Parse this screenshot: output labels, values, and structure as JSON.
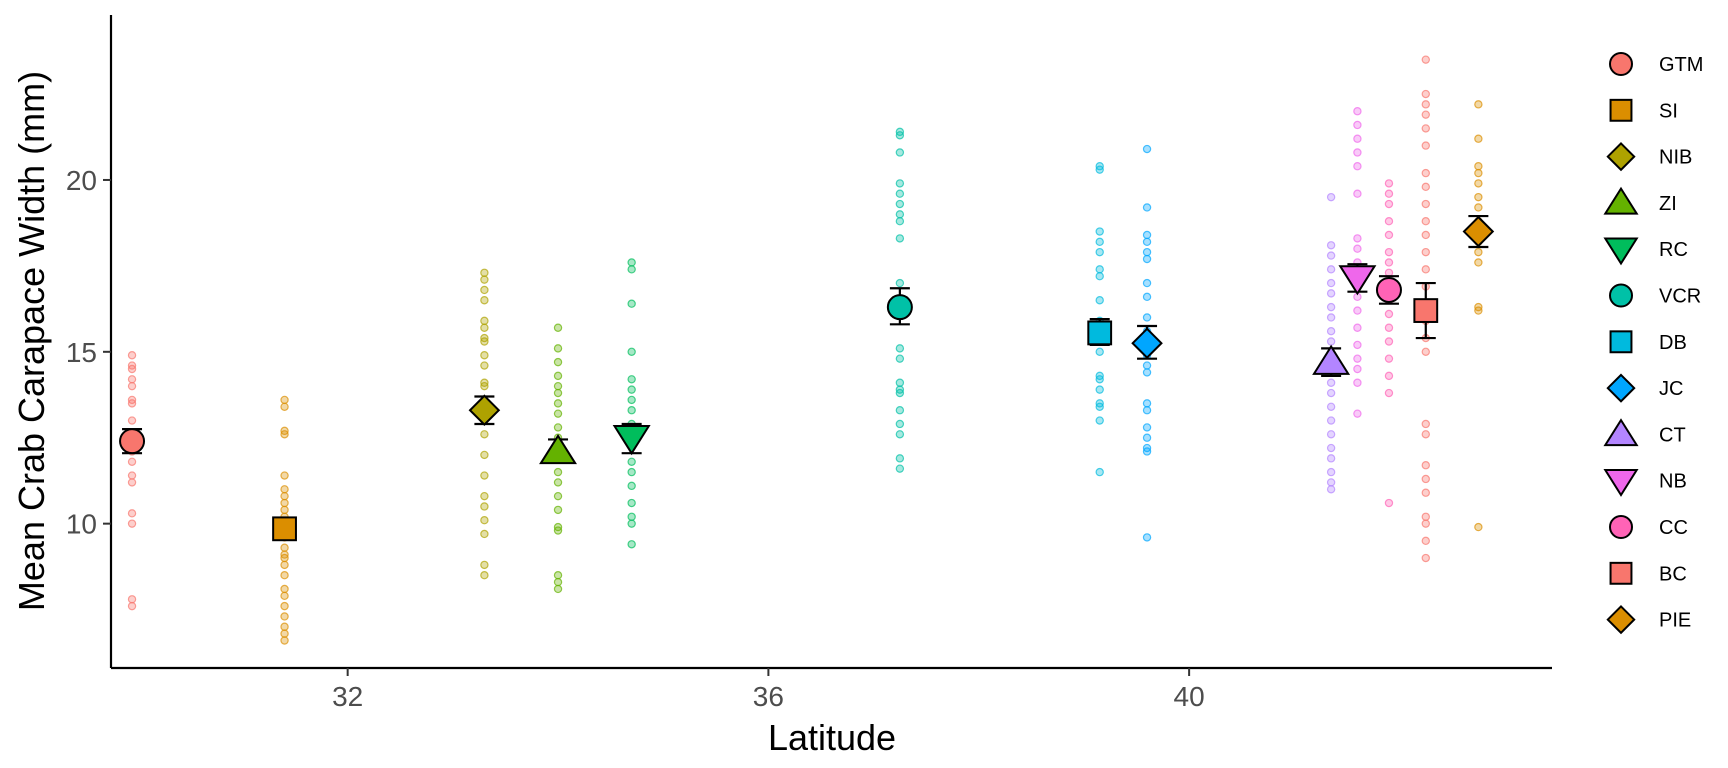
{
  "chart_data": {
    "type": "scatter",
    "title": "",
    "xlabel": "Latitude",
    "ylabel": "Mean Crab Carapace Width (mm)",
    "xlim": [
      29.75,
      43.45
    ],
    "ylim": [
      5.8,
      24.8
    ],
    "xticks": [
      32,
      36,
      40
    ],
    "yticks": [
      10,
      15,
      20
    ],
    "grid": false,
    "legend_position": "right",
    "series": [
      {
        "name": "GTM",
        "color": "#F8766D",
        "shape": "circle",
        "latitude": 29.95,
        "mean": 12.4,
        "se": [
          12.05,
          12.75
        ],
        "points": [
          14.9,
          14.6,
          14.5,
          14.2,
          14.0,
          13.6,
          13.5,
          13.0,
          12.6,
          12.4,
          12.1,
          11.8,
          11.4,
          11.2,
          10.3,
          10.0,
          7.8,
          7.6
        ]
      },
      {
        "name": "SI",
        "color": "#DB8E00",
        "shape": "square",
        "latitude": 31.4,
        "mean": 9.85,
        "se": [
          9.6,
          10.1
        ],
        "points": [
          13.6,
          13.4,
          12.7,
          12.6,
          11.4,
          11.0,
          10.8,
          10.6,
          10.4,
          10.2,
          10.0,
          9.8,
          9.6,
          9.3,
          9.1,
          9.0,
          8.8,
          8.5,
          8.1,
          7.9,
          7.6,
          7.3,
          7.0,
          6.8,
          6.6
        ]
      },
      {
        "name": "NIB",
        "color": "#AEA200",
        "shape": "diamond",
        "latitude": 33.3,
        "mean": 13.3,
        "se": [
          12.9,
          13.7
        ],
        "points": [
          17.3,
          17.1,
          16.8,
          16.5,
          15.9,
          15.7,
          15.4,
          15.3,
          14.9,
          14.6,
          14.1,
          14.0,
          13.5,
          13.0,
          12.6,
          12.0,
          11.4,
          10.8,
          10.5,
          10.1,
          9.7,
          8.8,
          8.5
        ]
      },
      {
        "name": "ZI",
        "color": "#64B200",
        "shape": "triangle-up",
        "latitude": 34.0,
        "mean": 12.1,
        "se": [
          11.8,
          12.45
        ],
        "points": [
          15.7,
          15.1,
          14.7,
          14.3,
          14.0,
          13.8,
          13.5,
          13.2,
          12.8,
          12.5,
          12.1,
          11.9,
          11.5,
          11.2,
          10.8,
          10.4,
          9.9,
          9.8,
          8.5,
          8.3,
          8.1
        ]
      },
      {
        "name": "RC",
        "color": "#00BD5C",
        "shape": "triangle-down",
        "latitude": 34.7,
        "mean": 12.5,
        "se": [
          12.05,
          12.9
        ],
        "points": [
          17.6,
          17.4,
          16.4,
          15.0,
          14.2,
          13.9,
          13.6,
          13.3,
          12.9,
          12.6,
          12.3,
          11.8,
          11.5,
          11.1,
          10.6,
          10.2,
          10.0,
          9.4
        ]
      },
      {
        "name": "VCR",
        "color": "#00C1A7",
        "shape": "circle",
        "latitude": 37.25,
        "mean": 16.3,
        "se": [
          15.8,
          16.85
        ],
        "points": [
          21.4,
          21.3,
          20.8,
          19.9,
          19.6,
          19.3,
          19.0,
          18.8,
          18.3,
          17.0,
          15.1,
          14.8,
          14.1,
          13.9,
          13.8,
          13.3,
          12.9,
          12.6,
          11.9,
          11.6
        ]
      },
      {
        "name": "DB",
        "color": "#00BADE",
        "shape": "square",
        "latitude": 39.15,
        "mean": 15.55,
        "se": [
          15.2,
          15.95
        ],
        "points": [
          20.4,
          20.3,
          18.5,
          18.2,
          17.9,
          17.4,
          17.2,
          16.5,
          15.9,
          15.4,
          15.0,
          14.3,
          14.2,
          13.9,
          13.5,
          13.4,
          13.0,
          11.5
        ]
      },
      {
        "name": "JC",
        "color": "#00A6FF",
        "shape": "diamond",
        "latitude": 39.6,
        "mean": 15.25,
        "se": [
          14.8,
          15.75
        ],
        "points": [
          20.9,
          19.2,
          18.4,
          18.2,
          17.9,
          17.7,
          17.0,
          16.6,
          16.0,
          15.6,
          14.9,
          14.6,
          14.4,
          13.5,
          13.3,
          12.8,
          12.5,
          12.2,
          12.1,
          9.6
        ]
      },
      {
        "name": "CT",
        "color": "#B385FF",
        "shape": "triangle-up",
        "latitude": 41.35,
        "mean": 14.7,
        "se": [
          14.3,
          15.1
        ],
        "points": [
          19.5,
          18.1,
          17.8,
          17.4,
          17.0,
          16.7,
          16.3,
          16.0,
          15.6,
          15.3,
          14.9,
          14.5,
          14.1,
          13.8,
          13.4,
          13.0,
          12.6,
          12.2,
          11.9,
          11.5,
          11.2,
          11.0
        ]
      },
      {
        "name": "NB",
        "color": "#EF67EB",
        "shape": "triangle-down",
        "latitude": 41.6,
        "mean": 17.15,
        "se": [
          16.75,
          17.55
        ],
        "points": [
          22.0,
          21.6,
          21.2,
          20.8,
          20.4,
          19.6,
          18.3,
          18.0,
          17.6,
          17.2,
          16.6,
          16.2,
          15.7,
          15.2,
          14.8,
          14.5,
          14.1,
          13.2
        ]
      },
      {
        "name": "CC",
        "color": "#FF63B6",
        "shape": "circle",
        "latitude": 41.9,
        "mean": 16.8,
        "se": [
          16.4,
          17.2
        ],
        "points": [
          19.9,
          19.6,
          19.3,
          18.8,
          18.4,
          17.9,
          17.6,
          17.3,
          16.9,
          16.5,
          16.1,
          15.7,
          15.3,
          14.8,
          14.3,
          13.8,
          10.6
        ]
      },
      {
        "name": "BC",
        "color": "#F8766D",
        "shape": "square",
        "latitude": 42.25,
        "mean": 16.2,
        "se": [
          15.4,
          17.0
        ],
        "points": [
          23.5,
          22.5,
          22.2,
          21.9,
          21.5,
          21.0,
          20.2,
          19.8,
          19.3,
          18.8,
          18.4,
          17.9,
          17.4,
          16.9,
          16.4,
          15.9,
          15.4,
          15.0,
          12.9,
          12.6,
          11.7,
          11.3,
          10.9,
          10.2,
          10.0,
          9.5,
          9.0
        ]
      },
      {
        "name": "PIE",
        "color": "#DB8E00",
        "shape": "diamond",
        "latitude": 42.75,
        "mean": 18.5,
        "se": [
          18.05,
          18.95
        ],
        "points": [
          22.2,
          21.2,
          20.4,
          20.2,
          19.9,
          19.5,
          19.2,
          18.8,
          18.5,
          18.2,
          17.9,
          17.6,
          16.3,
          16.2,
          9.9
        ]
      }
    ]
  }
}
